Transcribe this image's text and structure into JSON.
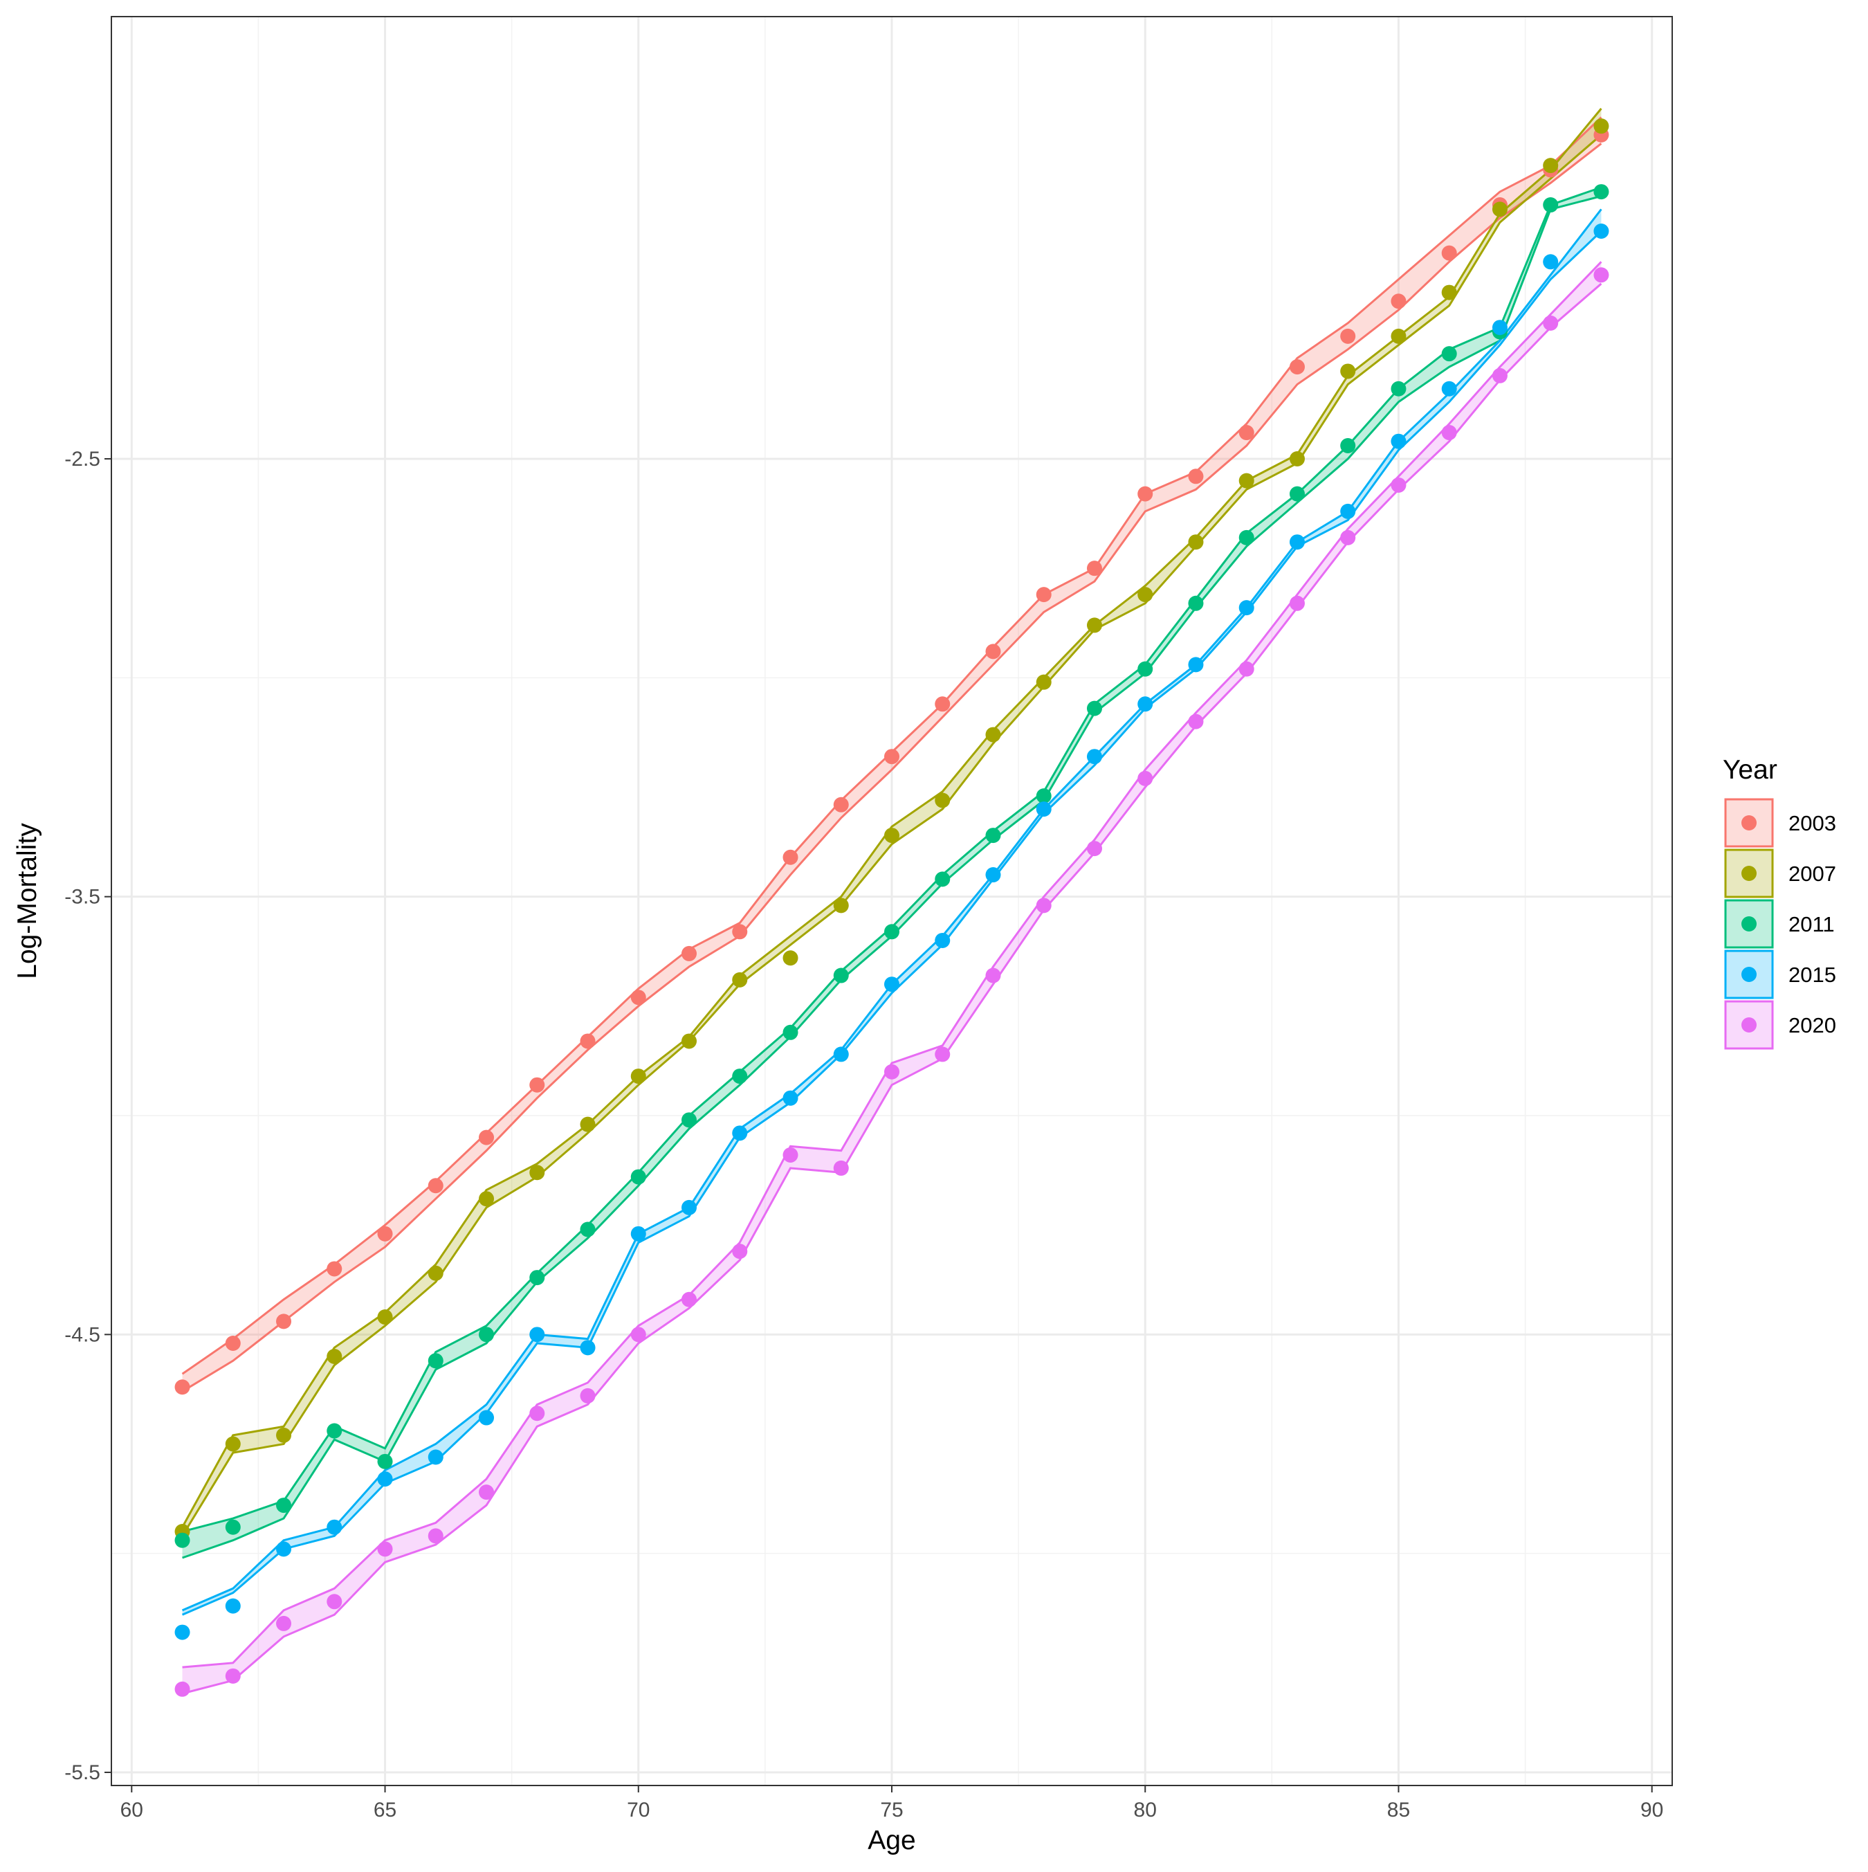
{
  "chart_data": {
    "type": "line",
    "title": "",
    "xlabel": "Age",
    "ylabel": "Log-Mortality",
    "xlim": [
      59.6,
      90.4
    ],
    "ylim": [
      -5.53,
      -1.49
    ],
    "x_ticks": [
      60,
      65,
      70,
      75,
      80,
      85,
      90
    ],
    "x_tick_labels": [
      "60",
      "65",
      "70",
      "75",
      "80",
      "85",
      "90"
    ],
    "y_ticks": [
      -2.5,
      -3.5,
      -4.5,
      -5.5
    ],
    "y_tick_labels": [
      "-2.5",
      "-3.5",
      "-4.5",
      "-5.5"
    ],
    "grid": true,
    "legend_title": "Year",
    "legend_position": "right",
    "x": [
      61,
      62,
      63,
      64,
      65,
      66,
      67,
      68,
      69,
      70,
      71,
      72,
      73,
      74,
      75,
      76,
      77,
      78,
      79,
      80,
      81,
      82,
      83,
      84,
      85,
      86,
      87,
      88,
      89
    ],
    "series": [
      {
        "name": "2003",
        "color": "#F8766D",
        "observed": [
          -4.62,
          -4.52,
          -4.47,
          -4.35,
          -4.27,
          -4.16,
          -4.05,
          -3.93,
          -3.83,
          -3.73,
          -3.63,
          -3.58,
          -3.41,
          -3.29,
          -3.18,
          -3.06,
          -2.94,
          -2.81,
          -2.75,
          -2.58,
          -2.54,
          -2.44,
          -2.29,
          -2.22,
          -2.14,
          -2.03,
          -1.92,
          -1.84,
          -1.76
        ],
        "band_low": [
          -4.63,
          -4.56,
          -4.47,
          -4.38,
          -4.3,
          -4.19,
          -4.08,
          -3.96,
          -3.85,
          -3.75,
          -3.66,
          -3.59,
          -3.45,
          -3.32,
          -3.21,
          -3.09,
          -2.97,
          -2.85,
          -2.78,
          -2.62,
          -2.57,
          -2.47,
          -2.33,
          -2.25,
          -2.16,
          -2.05,
          -1.95,
          -1.87,
          -1.78
        ],
        "band_high": [
          -4.59,
          -4.51,
          -4.42,
          -4.34,
          -4.25,
          -4.15,
          -4.04,
          -3.93,
          -3.82,
          -3.71,
          -3.62,
          -3.56,
          -3.41,
          -3.28,
          -3.17,
          -3.06,
          -2.93,
          -2.81,
          -2.75,
          -2.58,
          -2.53,
          -2.42,
          -2.27,
          -2.19,
          -2.09,
          -1.99,
          -1.89,
          -1.83,
          -1.72
        ]
      },
      {
        "name": "2007",
        "color": "#A3A500",
        "observed": [
          -4.95,
          -4.75,
          -4.73,
          -4.55,
          -4.46,
          -4.36,
          -4.19,
          -4.13,
          -4.02,
          -3.91,
          -3.83,
          -3.69,
          -3.64,
          -3.52,
          -3.36,
          -3.28,
          -3.13,
          -3.01,
          -2.88,
          -2.81,
          -2.69,
          -2.55,
          -2.5,
          -2.3,
          -2.22,
          -2.12,
          -1.93,
          -1.83,
          -1.74
        ],
        "band_low": [
          -4.96,
          -4.77,
          -4.75,
          -4.57,
          -4.48,
          -4.38,
          -4.21,
          -4.14,
          -4.04,
          -3.93,
          -3.83,
          -3.7,
          -3.61,
          -3.52,
          -3.38,
          -3.3,
          -3.15,
          -3.02,
          -2.89,
          -2.83,
          -2.7,
          -2.57,
          -2.51,
          -2.33,
          -2.24,
          -2.15,
          -1.96,
          -1.86,
          -1.76
        ],
        "band_high": [
          -4.94,
          -4.73,
          -4.71,
          -4.53,
          -4.45,
          -4.34,
          -4.17,
          -4.11,
          -4.02,
          -3.91,
          -3.82,
          -3.68,
          -3.59,
          -3.5,
          -3.34,
          -3.26,
          -3.12,
          -3.0,
          -2.88,
          -2.79,
          -2.68,
          -2.55,
          -2.49,
          -2.31,
          -2.22,
          -2.13,
          -1.94,
          -1.84,
          -1.7
        ]
      },
      {
        "name": "2011",
        "color": "#00BF7D",
        "observed": [
          -4.97,
          -4.94,
          -4.89,
          -4.72,
          -4.79,
          -4.56,
          -4.5,
          -4.37,
          -4.26,
          -4.14,
          -4.01,
          -3.91,
          -3.81,
          -3.68,
          -3.58,
          -3.46,
          -3.36,
          -3.27,
          -3.07,
          -2.98,
          -2.83,
          -2.68,
          -2.58,
          -2.47,
          -2.34,
          -2.26,
          -2.21,
          -1.92,
          -1.89
        ],
        "band_low": [
          -5.01,
          -4.97,
          -4.92,
          -4.74,
          -4.79,
          -4.58,
          -4.52,
          -4.38,
          -4.28,
          -4.16,
          -4.03,
          -3.93,
          -3.82,
          -3.69,
          -3.59,
          -3.47,
          -3.37,
          -3.28,
          -3.08,
          -2.99,
          -2.84,
          -2.7,
          -2.6,
          -2.5,
          -2.37,
          -2.29,
          -2.23,
          -1.93,
          -1.9
        ],
        "band_high": [
          -4.95,
          -4.92,
          -4.88,
          -4.71,
          -4.76,
          -4.54,
          -4.48,
          -4.36,
          -4.25,
          -4.13,
          -4.0,
          -3.9,
          -3.8,
          -3.67,
          -3.57,
          -3.45,
          -3.35,
          -3.26,
          -3.06,
          -2.97,
          -2.82,
          -2.67,
          -2.58,
          -2.47,
          -2.34,
          -2.25,
          -2.2,
          -1.92,
          -1.88
        ]
      },
      {
        "name": "2015",
        "color": "#00B0F6",
        "observed": [
          -5.18,
          -5.12,
          -4.99,
          -4.94,
          -4.83,
          -4.78,
          -4.69,
          -4.5,
          -4.53,
          -4.27,
          -4.21,
          -4.04,
          -3.96,
          -3.86,
          -3.7,
          -3.6,
          -3.45,
          -3.3,
          -3.18,
          -3.06,
          -2.97,
          -2.84,
          -2.69,
          -2.62,
          -2.46,
          -2.34,
          -2.2,
          -2.05,
          -1.98
        ],
        "band_low": [
          -5.14,
          -5.09,
          -4.99,
          -4.96,
          -4.84,
          -4.79,
          -4.68,
          -4.52,
          -4.53,
          -4.29,
          -4.23,
          -4.05,
          -3.97,
          -3.86,
          -3.72,
          -3.61,
          -3.46,
          -3.31,
          -3.2,
          -3.07,
          -2.98,
          -2.85,
          -2.7,
          -2.64,
          -2.48,
          -2.37,
          -2.24,
          -2.09,
          -1.98
        ],
        "band_high": [
          -5.13,
          -5.08,
          -4.97,
          -4.94,
          -4.81,
          -4.75,
          -4.66,
          -4.5,
          -4.51,
          -4.27,
          -4.21,
          -4.03,
          -3.95,
          -3.85,
          -3.7,
          -3.59,
          -3.45,
          -3.3,
          -3.18,
          -3.06,
          -2.97,
          -2.84,
          -2.69,
          -2.62,
          -2.46,
          -2.35,
          -2.23,
          -2.08,
          -1.93
        ]
      },
      {
        "name": "2020",
        "color": "#E76BF3",
        "observed": [
          -5.31,
          -5.28,
          -5.16,
          -5.11,
          -4.99,
          -4.96,
          -4.86,
          -4.68,
          -4.64,
          -4.5,
          -4.42,
          -4.31,
          -4.09,
          -4.12,
          -3.9,
          -3.86,
          -3.68,
          -3.52,
          -3.39,
          -3.23,
          -3.1,
          -2.98,
          -2.83,
          -2.68,
          -2.56,
          -2.44,
          -2.31,
          -2.19,
          -2.08
        ],
        "band_low": [
          -5.32,
          -5.29,
          -5.19,
          -5.14,
          -5.02,
          -4.98,
          -4.89,
          -4.71,
          -4.66,
          -4.52,
          -4.44,
          -4.33,
          -4.12,
          -4.13,
          -3.93,
          -3.87,
          -3.7,
          -3.53,
          -3.4,
          -3.25,
          -3.11,
          -2.99,
          -2.84,
          -2.69,
          -2.57,
          -2.46,
          -2.32,
          -2.2,
          -2.1
        ],
        "band_high": [
          -5.26,
          -5.25,
          -5.13,
          -5.08,
          -4.97,
          -4.93,
          -4.83,
          -4.66,
          -4.61,
          -4.48,
          -4.41,
          -4.29,
          -4.07,
          -4.08,
          -3.88,
          -3.84,
          -3.66,
          -3.5,
          -3.37,
          -3.21,
          -3.08,
          -2.96,
          -2.81,
          -2.66,
          -2.54,
          -2.42,
          -2.29,
          -2.17,
          -2.05
        ]
      }
    ]
  }
}
